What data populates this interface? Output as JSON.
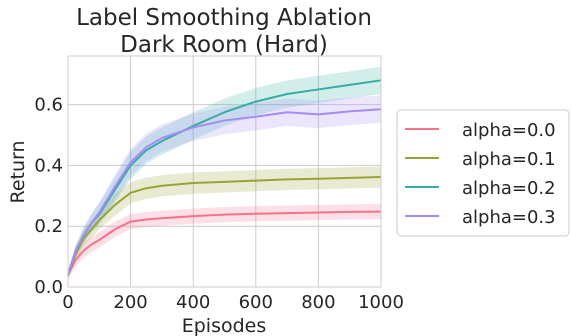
{
  "chart_data": {
    "type": "line",
    "title_lines": [
      "Label Smoothing Ablation",
      "Dark Room (Hard)"
    ],
    "xlabel": "Episodes",
    "ylabel": "Return",
    "xlim": [
      0,
      1000
    ],
    "ylim": [
      0,
      0.76
    ],
    "xticks": [
      0,
      200,
      400,
      600,
      800,
      1000
    ],
    "yticks": [
      0.0,
      0.2,
      0.4,
      0.6
    ],
    "xtick_labels": [
      "0",
      "200",
      "400",
      "600",
      "800",
      "1000"
    ],
    "ytick_labels": [
      "0.0",
      "0.2",
      "0.4",
      "0.6"
    ],
    "grid": true,
    "legend_position": "outside-right",
    "x": [
      0,
      25,
      50,
      75,
      100,
      150,
      200,
      250,
      300,
      400,
      500,
      600,
      700,
      800,
      900,
      1000
    ],
    "series": [
      {
        "name": "alpha=0.0",
        "color": "#f77189",
        "values": [
          0.04,
          0.09,
          0.12,
          0.14,
          0.155,
          0.19,
          0.215,
          0.222,
          0.226,
          0.233,
          0.238,
          0.241,
          0.243,
          0.245,
          0.247,
          0.248
        ],
        "spread": [
          0.015,
          0.02,
          0.025,
          0.025,
          0.025,
          0.025,
          0.025,
          0.025,
          0.025,
          0.025,
          0.025,
          0.025,
          0.025,
          0.025,
          0.025,
          0.025
        ]
      },
      {
        "name": "alpha=0.1",
        "color": "#97a431",
        "values": [
          0.04,
          0.11,
          0.16,
          0.19,
          0.22,
          0.27,
          0.31,
          0.325,
          0.333,
          0.342,
          0.346,
          0.35,
          0.354,
          0.356,
          0.359,
          0.362
        ],
        "spread": [
          0.015,
          0.02,
          0.025,
          0.03,
          0.03,
          0.035,
          0.035,
          0.035,
          0.035,
          0.035,
          0.035,
          0.035,
          0.035,
          0.035,
          0.035,
          0.035
        ]
      },
      {
        "name": "alpha=0.2",
        "color": "#36ada4",
        "values": [
          0.04,
          0.12,
          0.17,
          0.21,
          0.24,
          0.32,
          0.4,
          0.45,
          0.48,
          0.53,
          0.575,
          0.61,
          0.635,
          0.65,
          0.665,
          0.68
        ],
        "spread": [
          0.015,
          0.02,
          0.025,
          0.03,
          0.035,
          0.04,
          0.045,
          0.045,
          0.045,
          0.045,
          0.045,
          0.045,
          0.045,
          0.045,
          0.045,
          0.045
        ]
      },
      {
        "name": "alpha=0.3",
        "color": "#a48cf4",
        "values": [
          0.04,
          0.12,
          0.17,
          0.21,
          0.245,
          0.33,
          0.41,
          0.46,
          0.49,
          0.525,
          0.548,
          0.56,
          0.575,
          0.568,
          0.578,
          0.585
        ],
        "spread": [
          0.015,
          0.02,
          0.025,
          0.03,
          0.035,
          0.04,
          0.045,
          0.045,
          0.045,
          0.045,
          0.045,
          0.045,
          0.045,
          0.045,
          0.045,
          0.045
        ]
      }
    ]
  }
}
